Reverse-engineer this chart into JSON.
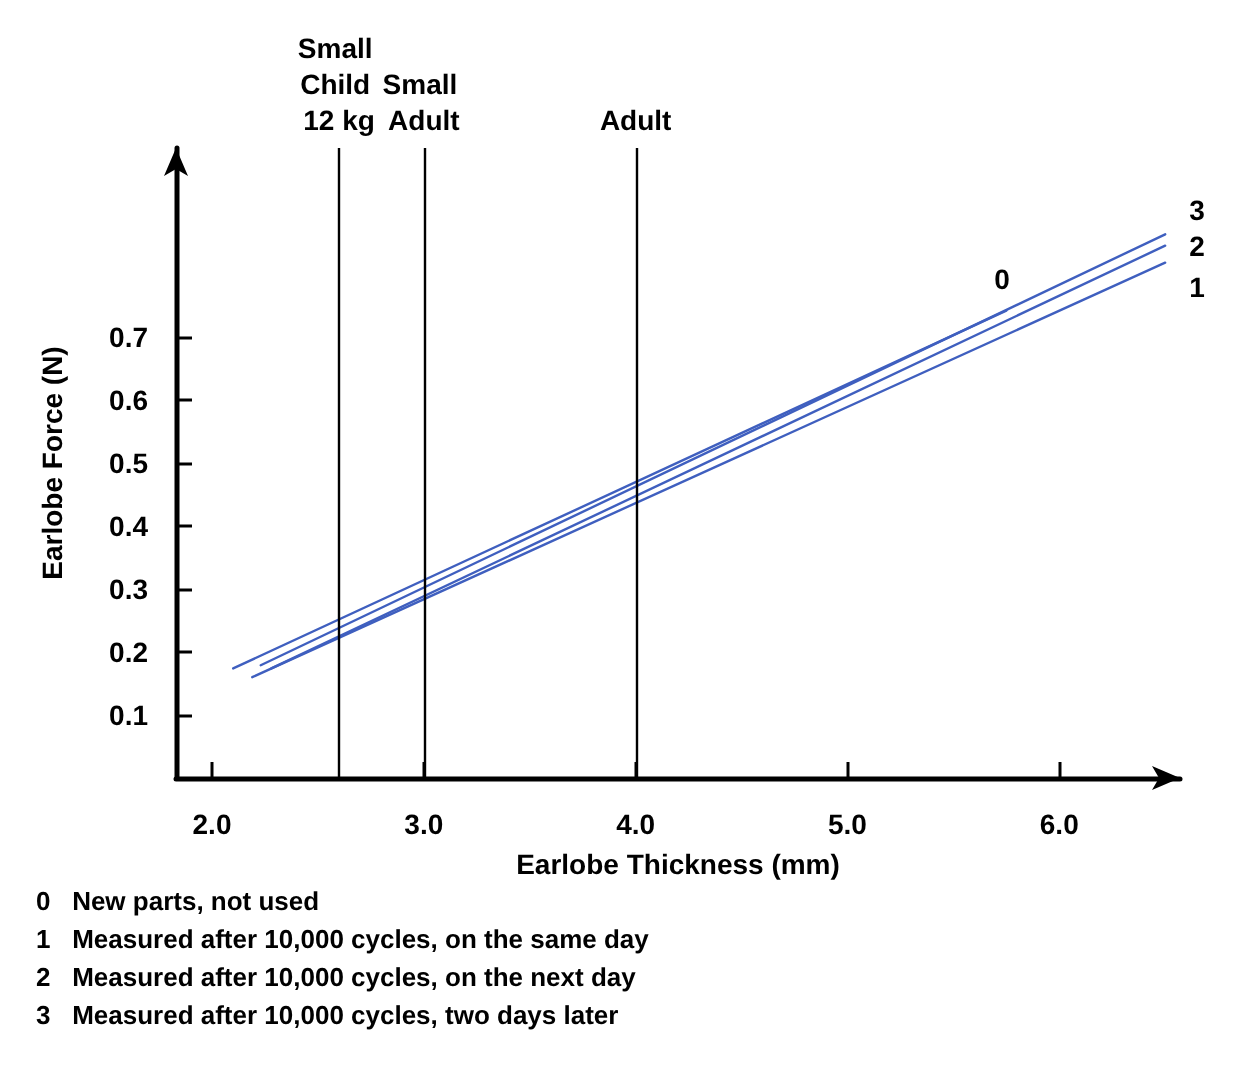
{
  "chart_data": {
    "type": "line",
    "xlabel": "Earlobe Thickness (mm)",
    "ylabel": "Earlobe Force (N)",
    "series": [
      {
        "name": "0",
        "color": "#3f5fbf",
        "x": [
          2.1,
          5.75
        ],
        "values": [
          0.174,
          0.742
        ]
      },
      {
        "name": "1",
        "color": "#3f5fbf",
        "x": [
          2.19,
          6.5
        ],
        "values": [
          0.16,
          0.818
        ]
      },
      {
        "name": "2",
        "color": "#3f5fbf",
        "x": [
          2.28,
          6.5
        ],
        "values": [
          0.174,
          0.845
        ]
      },
      {
        "name": "3",
        "color": "#3f5fbf",
        "x": [
          2.23,
          6.5
        ],
        "values": [
          0.179,
          0.863
        ]
      }
    ],
    "xlim": [
      1.83,
      6.57
    ],
    "ylim": [
      0,
      1.0
    ],
    "xticks": [
      {
        "value": 2,
        "label": "2.0"
      },
      {
        "value": 3,
        "label": "3.0"
      },
      {
        "value": 4,
        "label": "4.0"
      },
      {
        "value": 5,
        "label": "5.0"
      },
      {
        "value": 6,
        "label": "6.0"
      }
    ],
    "yticks": [
      0.1,
      0.2,
      0.3,
      0.4,
      0.5,
      0.6,
      0.7
    ],
    "ref_lines": [
      {
        "axis": "x",
        "value": 2.6,
        "label": "Small Child 12 kg",
        "color": "#000000"
      },
      {
        "axis": "x",
        "value": 3.0,
        "label": "Small Adult",
        "color": "#000000"
      },
      {
        "axis": "x",
        "value": 4.0,
        "label": "Adult",
        "color": "#000000"
      }
    ],
    "annotations": [
      "0   New parts, not used",
      "1   Measured after 10,000 cycles, on the same day",
      "2   Measured after 10,000 cycles, on the next day",
      "3   Measured after 10,000 cycles, two days later"
    ],
    "grid": false,
    "legend": false,
    "marker": "none",
    "line_style": "solid"
  }
}
